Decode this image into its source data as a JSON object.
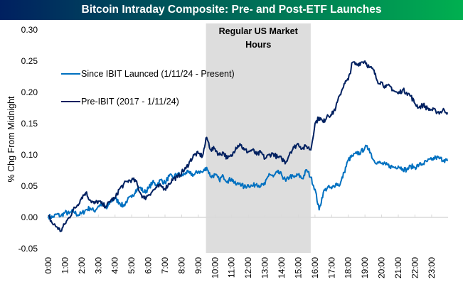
{
  "chart_data": {
    "type": "line",
    "title": "Bitcoin Intraday Composite: Pre- and Post-ETF Launches",
    "xlabel": "",
    "ylabel": "% Chg From Midnight",
    "ylim": [
      -0.05,
      0.3
    ],
    "xlim": [
      0,
      23.95
    ],
    "yticks": [
      -0.05,
      0.0,
      0.05,
      0.1,
      0.15,
      0.2,
      0.25,
      0.3
    ],
    "ytick_labels": [
      "-0.05",
      "0.00",
      "0.05",
      "0.10",
      "0.15",
      "0.20",
      "0.25",
      "0.30"
    ],
    "xtick_labels": [
      "0:00",
      "1:00",
      "2:00",
      "3:00",
      "4:00",
      "5:00",
      "6:00",
      "7:00",
      "8:00",
      "9:00",
      "10:00",
      "11:00",
      "12:00",
      "13:00",
      "14:00",
      "15:00",
      "16:00",
      "17:00",
      "18:00",
      "19:00",
      "20:00",
      "21:00",
      "22:00",
      "23:00"
    ],
    "grid": false,
    "legend_position": "top-left",
    "shaded_region": {
      "label": "Regular US Market Hours",
      "start_hour": 9.5,
      "end_hour": 16.0,
      "color": "#DDDDDD"
    },
    "x_hours": [
      0,
      0.25,
      0.5,
      0.75,
      1,
      1.25,
      1.5,
      1.75,
      2,
      2.25,
      2.5,
      2.75,
      3,
      3.25,
      3.5,
      3.75,
      4,
      4.25,
      4.5,
      4.75,
      5,
      5.25,
      5.5,
      5.75,
      6,
      6.25,
      6.5,
      6.75,
      7,
      7.25,
      7.5,
      7.75,
      8,
      8.25,
      8.5,
      8.75,
      9,
      9.25,
      9.5,
      9.75,
      10,
      10.25,
      10.5,
      10.75,
      11,
      11.25,
      11.5,
      11.75,
      12,
      12.25,
      12.5,
      12.75,
      13,
      13.25,
      13.5,
      13.75,
      14,
      14.25,
      14.5,
      14.75,
      15,
      15.25,
      15.5,
      15.75,
      16,
      16.25,
      16.5,
      16.75,
      17,
      17.25,
      17.5,
      17.75,
      18,
      18.25,
      18.5,
      18.75,
      19,
      19.25,
      19.5,
      19.75,
      20,
      20.25,
      20.5,
      20.75,
      21,
      21.25,
      21.5,
      21.75,
      22,
      22.25,
      22.5,
      22.75,
      23,
      23.25,
      23.5,
      23.75,
      23.95
    ],
    "series": [
      {
        "name": "Since IBIT Launced (1/11/24 - Present)",
        "color": "#0070C0",
        "values": [
          0.002,
          0.0,
          0.005,
          0.002,
          0.008,
          0.006,
          0.01,
          0.004,
          0.006,
          0.012,
          0.015,
          0.01,
          0.018,
          0.022,
          0.014,
          0.026,
          0.03,
          0.024,
          0.018,
          0.028,
          0.032,
          0.044,
          0.048,
          0.04,
          0.046,
          0.056,
          0.052,
          0.06,
          0.055,
          0.066,
          0.064,
          0.07,
          0.066,
          0.072,
          0.07,
          0.068,
          0.074,
          0.072,
          0.08,
          0.065,
          0.068,
          0.06,
          0.066,
          0.058,
          0.062,
          0.052,
          0.055,
          0.048,
          0.052,
          0.05,
          0.054,
          0.05,
          0.053,
          0.07,
          0.065,
          0.072,
          0.068,
          0.058,
          0.066,
          0.064,
          0.068,
          0.062,
          0.076,
          0.064,
          0.045,
          0.012,
          0.04,
          0.048,
          0.046,
          0.054,
          0.052,
          0.072,
          0.092,
          0.098,
          0.102,
          0.104,
          0.112,
          0.11,
          0.092,
          0.088,
          0.086,
          0.084,
          0.082,
          0.08,
          0.082,
          0.078,
          0.076,
          0.082,
          0.08,
          0.084,
          0.086,
          0.09,
          0.092,
          0.096,
          0.094,
          0.092,
          0.09
        ]
      },
      {
        "name": "Pre-IBIT (2017 - 1/11/24)",
        "color": "#002060",
        "values": [
          0.002,
          -0.01,
          -0.015,
          -0.022,
          -0.01,
          0.0,
          0.012,
          0.02,
          0.032,
          0.04,
          0.028,
          0.022,
          0.026,
          0.02,
          0.018,
          0.028,
          0.03,
          0.045,
          0.052,
          0.058,
          0.06,
          0.058,
          0.04,
          0.03,
          0.036,
          0.042,
          0.048,
          0.05,
          0.046,
          0.054,
          0.062,
          0.064,
          0.072,
          0.078,
          0.09,
          0.1,
          0.102,
          0.098,
          0.128,
          0.108,
          0.11,
          0.1,
          0.104,
          0.094,
          0.098,
          0.112,
          0.118,
          0.108,
          0.105,
          0.108,
          0.1,
          0.104,
          0.094,
          0.1,
          0.102,
          0.096,
          0.094,
          0.088,
          0.104,
          0.112,
          0.118,
          0.11,
          0.114,
          0.108,
          0.15,
          0.16,
          0.152,
          0.164,
          0.164,
          0.176,
          0.196,
          0.214,
          0.22,
          0.248,
          0.244,
          0.248,
          0.25,
          0.24,
          0.236,
          0.218,
          0.216,
          0.208,
          0.21,
          0.202,
          0.198,
          0.204,
          0.2,
          0.194,
          0.182,
          0.176,
          0.18,
          0.174,
          0.172,
          0.17,
          0.168,
          0.172,
          0.168
        ]
      }
    ]
  }
}
